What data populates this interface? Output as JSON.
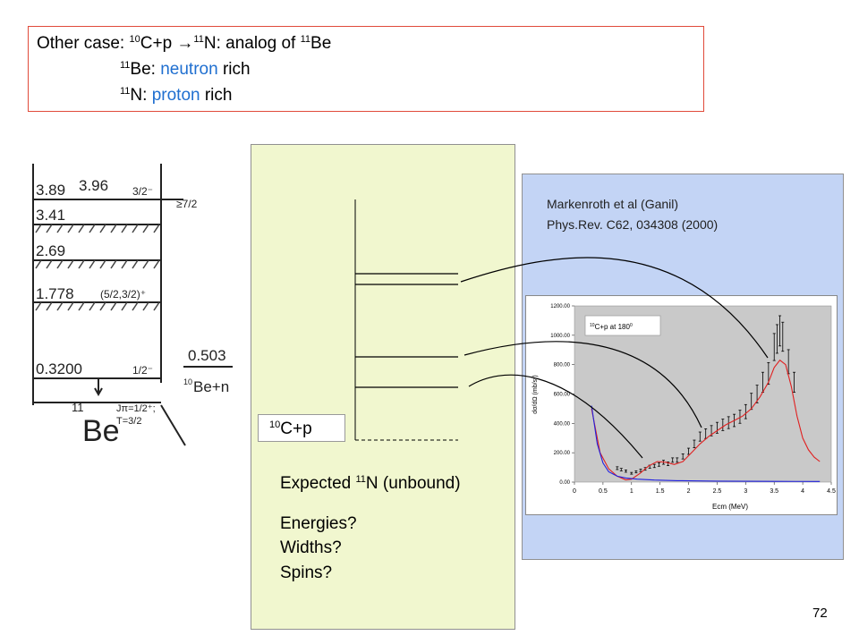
{
  "title": {
    "prefix": "Other case: ",
    "mass_c": "10",
    "reaction": "C+p ",
    "arrow": "→",
    "mass_n": "11",
    "n_text": "N: analog of ",
    "mass_be": "11",
    "be_text": "Be",
    "line2_mass": "11",
    "line2_elem": "Be: ",
    "line2_highlight": "neutron",
    "line2_rest": " rich",
    "line3_mass": "11",
    "line3_elem": "N: ",
    "line3_highlight": "proton",
    "line3_rest": " rich",
    "highlight_color": "#1f6fd0",
    "border_color": "#e04a3a"
  },
  "be11_levels": {
    "levels": [
      "3.89",
      "3.96",
      "3.41",
      "2.69",
      "1.778",
      "0.3200"
    ],
    "spins": [
      "3/2⁻",
      "≥7/2",
      "(5/2,3/2)⁺",
      "1/2⁻",
      "Jπ=1/2⁺;",
      "T=3/2"
    ],
    "threshold": "0.503",
    "threshold_label_mass": "10",
    "threshold_label": "Be+n",
    "nucleus_mass": "11",
    "nucleus": "Be"
  },
  "n11_scheme": {
    "reaction_mass": "10",
    "reaction": "C+p",
    "expected_prefix": "Expected ",
    "expected_mass": "11",
    "expected_suffix": "N (unbound)",
    "questions": [
      "Energies?",
      "Widths?",
      "Spins?"
    ],
    "panel_color": "#f1f7cf"
  },
  "reference": {
    "line1": "Markenroth et al (Ganil)",
    "line2": "Phys.Rev. C62, 034308 (2000)",
    "panel_color": "#c3d4f5"
  },
  "chart_data": {
    "type": "scatter",
    "title": "C+p at 180",
    "title_mass": "10",
    "title_unit": "0",
    "xlabel": "Ecm (MeV)",
    "ylabel": "dσ/dΩ (mb/sr)",
    "xlim": [
      0,
      4.5
    ],
    "ylim": [
      0,
      1200
    ],
    "x_ticks": [
      "0",
      "0.5",
      "1",
      "1.5",
      "2",
      "2.5",
      "3",
      "3.5",
      "4",
      "4.5"
    ],
    "y_ticks": [
      "0.00",
      "200.00",
      "400.00",
      "600.00",
      "800.00",
      "1000.00",
      "1200.00"
    ],
    "grid": false,
    "plot_bg": "#c9c9c9",
    "series": [
      {
        "kind": "data",
        "color": "#000000",
        "x": [
          0.75,
          0.82,
          0.9,
          1.0,
          1.08,
          1.16,
          1.24,
          1.32,
          1.4,
          1.48,
          1.56,
          1.64,
          1.72,
          1.8,
          1.9,
          2.0,
          2.1,
          2.2,
          2.3,
          2.4,
          2.5,
          2.6,
          2.7,
          2.8,
          2.9,
          3.0,
          3.1,
          3.2,
          3.3,
          3.4,
          3.5,
          3.55,
          3.6,
          3.65,
          3.75,
          3.85
        ],
        "y": [
          95,
          85,
          75,
          60,
          70,
          80,
          90,
          105,
          110,
          120,
          135,
          125,
          150,
          150,
          175,
          210,
          260,
          310,
          330,
          350,
          370,
          390,
          405,
          420,
          445,
          480,
          550,
          600,
          680,
          740,
          920,
          975,
          1030,
          990,
          820,
          680
        ]
      },
      {
        "kind": "fit",
        "color": "#e02020",
        "x": [
          0.3,
          0.45,
          0.6,
          0.75,
          0.9,
          1.0,
          1.15,
          1.3,
          1.45,
          1.6,
          1.75,
          1.9,
          2.05,
          2.2,
          2.35,
          2.5,
          2.65,
          2.8,
          2.95,
          3.1,
          3.25,
          3.4,
          3.5,
          3.6,
          3.7,
          3.8,
          3.9,
          4.0,
          4.1,
          4.2,
          4.3
        ],
        "y": [
          500,
          200,
          90,
          40,
          15,
          20,
          60,
          110,
          140,
          135,
          120,
          140,
          200,
          260,
          310,
          350,
          390,
          420,
          450,
          500,
          580,
          680,
          780,
          830,
          800,
          650,
          450,
          300,
          220,
          170,
          140
        ]
      },
      {
        "kind": "fit",
        "color": "#2020e0",
        "x": [
          0.3,
          0.4,
          0.5,
          0.6,
          0.75,
          0.9,
          1.1,
          1.4,
          1.8,
          2.5,
          3.5,
          4.3
        ],
        "y": [
          520,
          260,
          130,
          70,
          40,
          28,
          20,
          14,
          10,
          7,
          5,
          4
        ]
      }
    ]
  },
  "page_number": "72"
}
